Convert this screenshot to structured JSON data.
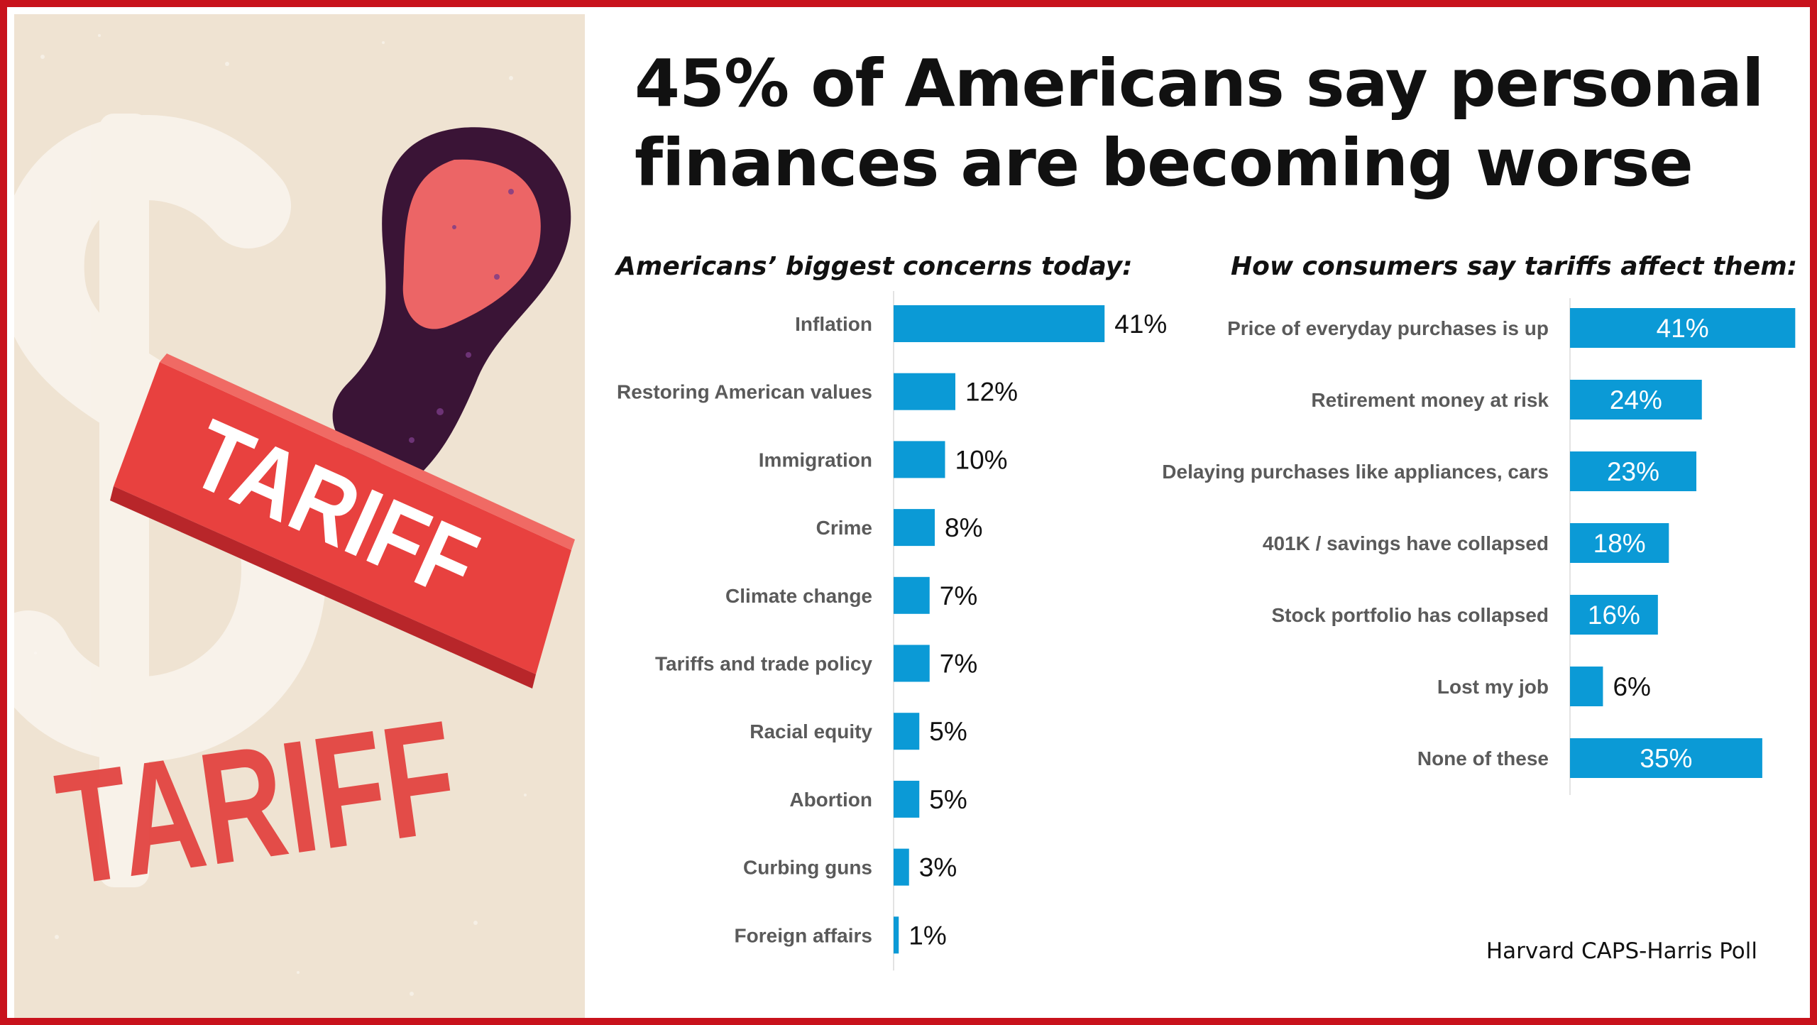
{
  "headline": "45% of Americans say personal finances are becoming worse",
  "illustration": {
    "stamp_text": "TARIFF",
    "print_text": "TARIFF",
    "icons": [
      "dollar-sign-icon",
      "rubber-stamp-icon"
    ]
  },
  "colors": {
    "bar": "#0b9ad6",
    "frame": "#c8121c",
    "stamp_red": "#e8413f",
    "stamp_handle": "#3a1436",
    "background_art": "#efe3d2"
  },
  "chart_data": [
    {
      "type": "bar",
      "orientation": "horizontal",
      "title": "Americans’ biggest concerns today:",
      "categories": [
        "Inflation",
        "Restoring American values",
        "Immigration",
        "Crime",
        "Climate change",
        "Tariffs and trade policy",
        "Racial equity",
        "Abortion",
        "Curbing guns",
        "Foreign affairs"
      ],
      "values": [
        41,
        12,
        10,
        8,
        7,
        7,
        5,
        5,
        3,
        1
      ],
      "value_labels": [
        "41%",
        "12%",
        "10%",
        "8%",
        "7%",
        "7%",
        "5%",
        "5%",
        "3%",
        "1%"
      ],
      "unit": "%",
      "label_position": "outside",
      "grid": false
    },
    {
      "type": "bar",
      "orientation": "horizontal",
      "title": "How consumers say tariffs affect them:",
      "categories": [
        "Price of everyday purchases is up",
        "Retirement money at risk",
        "Delaying purchases like appliances, cars",
        "401K / savings have collapsed",
        "Stock portfolio has collapsed",
        "Lost my job",
        "None of these"
      ],
      "values": [
        41,
        24,
        23,
        18,
        16,
        6,
        35
      ],
      "value_labels": [
        "41%",
        "24%",
        "23%",
        "18%",
        "16%",
        "6%",
        "35%"
      ],
      "unit": "%",
      "label_position": "inside",
      "grid": false
    }
  ],
  "source": "Harvard CAPS-Harris Poll"
}
